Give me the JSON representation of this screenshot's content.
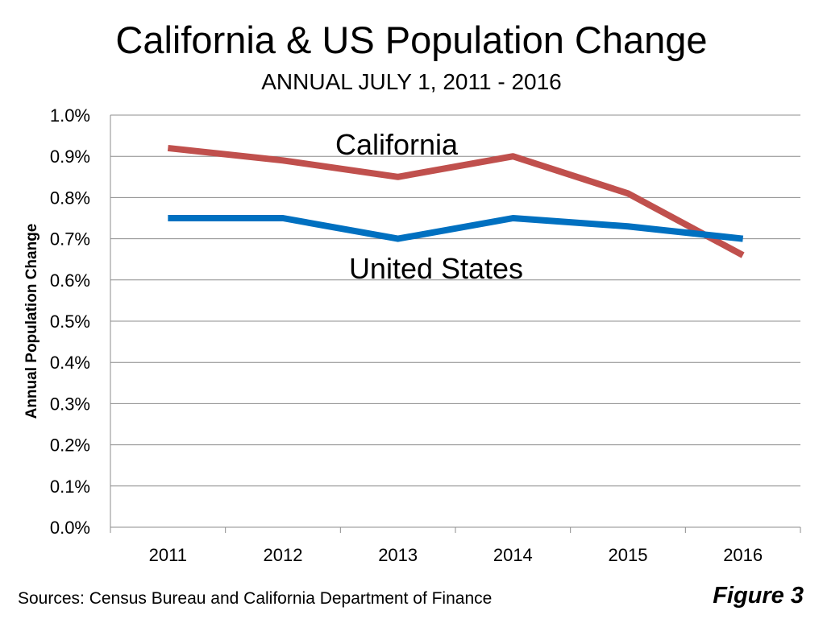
{
  "chart_data": {
    "type": "line",
    "title": "California & US Population Change",
    "subtitle": "ANNUAL JULY 1, 2011 - 2016",
    "ylabel": "Annual Population Change",
    "xlabel": "",
    "categories": [
      "2011",
      "2012",
      "2013",
      "2014",
      "2015",
      "2016"
    ],
    "ylim": [
      0,
      1.0
    ],
    "yticks": [
      "0.0%",
      "0.1%",
      "0.2%",
      "0.3%",
      "0.4%",
      "0.5%",
      "0.6%",
      "0.7%",
      "0.8%",
      "0.9%",
      "1.0%"
    ],
    "grid": true,
    "series": [
      {
        "name": "California",
        "values": [
          0.92,
          0.89,
          0.85,
          0.9,
          0.81,
          0.66
        ],
        "color": "#c0504d"
      },
      {
        "name": "United States",
        "values": [
          0.75,
          0.75,
          0.7,
          0.75,
          0.73,
          0.7
        ],
        "color": "#0070c0"
      }
    ]
  },
  "footer": {
    "source": "Sources:  Census Bureau and California  Department of Finance",
    "figure": "Figure 3"
  }
}
